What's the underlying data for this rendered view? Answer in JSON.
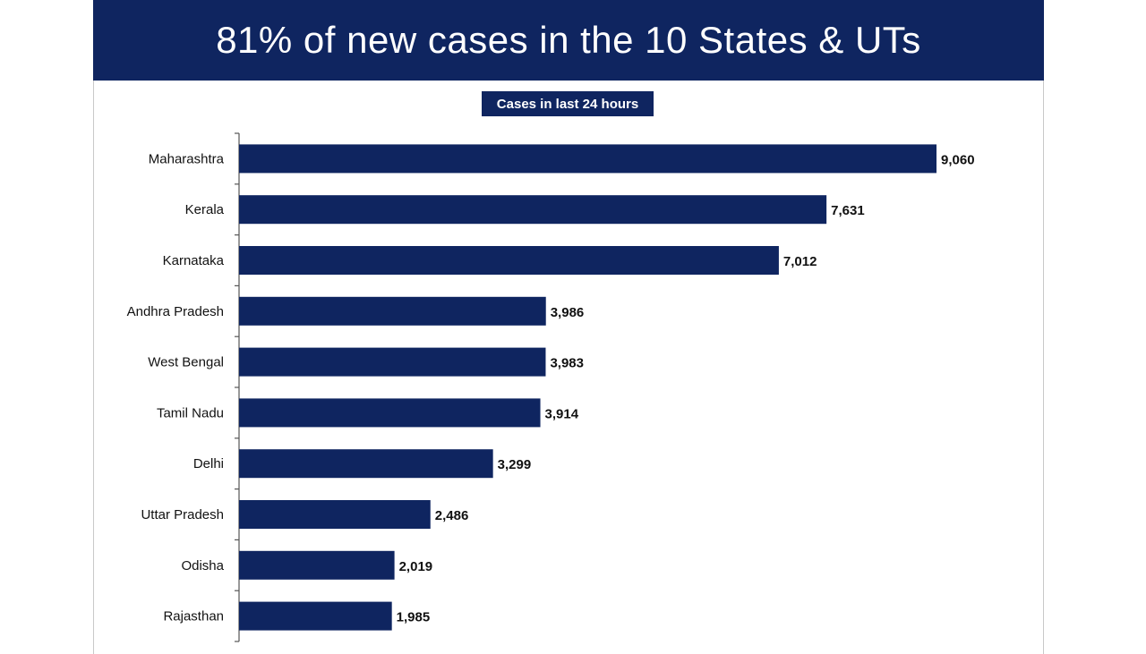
{
  "header": {
    "title": "81% of new cases in the 10 States & UTs"
  },
  "chart_data": {
    "type": "bar",
    "orientation": "horizontal",
    "title": "Cases in last 24 hours",
    "categories": [
      "Maharashtra",
      "Kerala",
      "Karnataka",
      "Andhra Pradesh",
      "West Bengal",
      "Tamil Nadu",
      "Delhi",
      "Uttar Pradesh",
      "Odisha",
      "Rajasthan"
    ],
    "values": [
      9060,
      7631,
      7012,
      3986,
      3983,
      3914,
      3299,
      2486,
      2019,
      1985
    ],
    "value_labels": [
      "9,060",
      "7,631",
      "7,012",
      "3,986",
      "3,983",
      "3,914",
      "3,299",
      "2,486",
      "2,019",
      "1,985"
    ],
    "xlim": [
      0,
      9060
    ],
    "grid": false,
    "legend": "none",
    "bar_color": "#0f2560"
  }
}
